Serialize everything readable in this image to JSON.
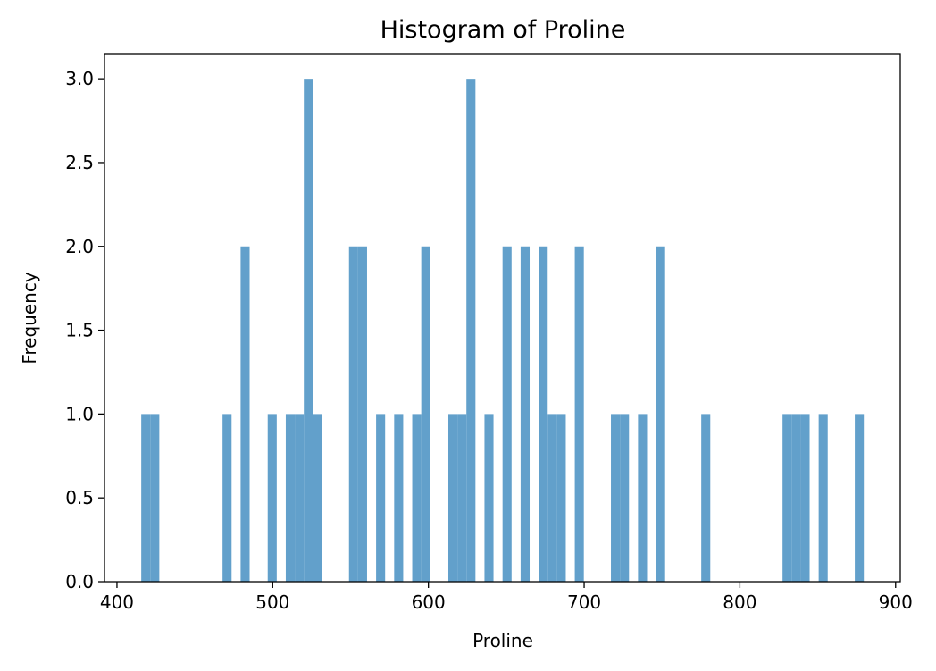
{
  "chart_data": {
    "type": "bar",
    "title": "Histogram of Proline",
    "xlabel": "Proline",
    "ylabel": "Frequency",
    "xlim": [
      392,
      903
    ],
    "ylim": [
      0,
      3.15
    ],
    "xticks": [
      400,
      500,
      600,
      700,
      800,
      900
    ],
    "yticks": [
      0.0,
      0.5,
      1.0,
      1.5,
      2.0,
      2.5,
      3.0
    ],
    "bin_width": 5.8,
    "bar_color": "#62a0cb",
    "grid": false,
    "bins": [
      {
        "start": 415.6,
        "count": 1
      },
      {
        "start": 421.4,
        "count": 1
      },
      {
        "start": 467.8,
        "count": 1
      },
      {
        "start": 479.4,
        "count": 2
      },
      {
        "start": 496.8,
        "count": 1
      },
      {
        "start": 508.4,
        "count": 1
      },
      {
        "start": 514.2,
        "count": 1
      },
      {
        "start": 520.0,
        "count": 3
      },
      {
        "start": 525.8,
        "count": 1
      },
      {
        "start": 549.0,
        "count": 2
      },
      {
        "start": 554.8,
        "count": 2
      },
      {
        "start": 566.4,
        "count": 1
      },
      {
        "start": 578.0,
        "count": 1
      },
      {
        "start": 589.6,
        "count": 1
      },
      {
        "start": 595.4,
        "count": 2
      },
      {
        "start": 612.8,
        "count": 1
      },
      {
        "start": 618.6,
        "count": 1
      },
      {
        "start": 624.4,
        "count": 3
      },
      {
        "start": 636.0,
        "count": 1
      },
      {
        "start": 647.6,
        "count": 2
      },
      {
        "start": 659.2,
        "count": 2
      },
      {
        "start": 670.8,
        "count": 2
      },
      {
        "start": 676.6,
        "count": 1
      },
      {
        "start": 682.4,
        "count": 1
      },
      {
        "start": 694.0,
        "count": 2
      },
      {
        "start": 717.2,
        "count": 1
      },
      {
        "start": 723.0,
        "count": 1
      },
      {
        "start": 734.6,
        "count": 1
      },
      {
        "start": 746.2,
        "count": 2
      },
      {
        "start": 775.2,
        "count": 1
      },
      {
        "start": 827.4,
        "count": 1
      },
      {
        "start": 833.2,
        "count": 1
      },
      {
        "start": 839.0,
        "count": 1
      },
      {
        "start": 850.6,
        "count": 1
      },
      {
        "start": 873.8,
        "count": 1
      }
    ]
  }
}
